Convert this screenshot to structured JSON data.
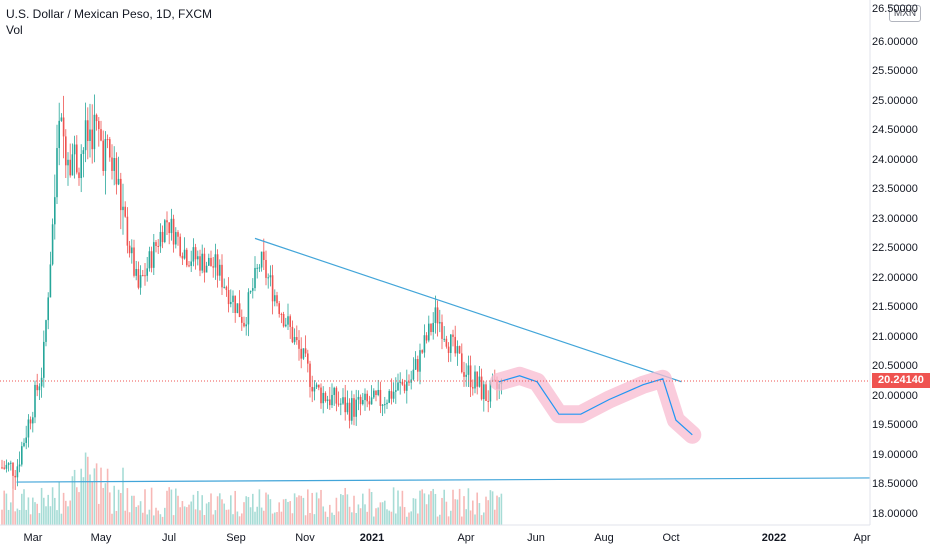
{
  "header": {
    "symbol_title": "U.S. Dollar / Mexican Peso, 1D, FXCM",
    "volume_label": "Vol",
    "currency": "MXN"
  },
  "price_axis": {
    "labels": [
      "26.00000",
      "25.50000",
      "25.00000",
      "24.50000",
      "24.00000",
      "23.50000",
      "23.00000",
      "22.50000",
      "22.00000",
      "21.50000",
      "21.00000",
      "20.50000",
      "20.00000",
      "19.50000",
      "19.00000",
      "18.50000",
      "18.00000"
    ],
    "top_partial": "26.50000",
    "last_price": "20.24140"
  },
  "time_axis": {
    "labels": [
      "Mar",
      "May",
      "Jul",
      "Sep",
      "Nov",
      "2021",
      "Apr",
      "Jun",
      "Aug",
      "Oct",
      "2022",
      "Apr"
    ],
    "bold": [
      "2021",
      "2022"
    ]
  },
  "colors": {
    "up": "#26a69a",
    "down": "#ef5350",
    "trendline": "#42a5d9",
    "projection": "#2196f3",
    "projection_band": "#f8bbd0"
  },
  "chart_data": {
    "type": "candlestick",
    "symbol": "USDMXN",
    "interval": "1D",
    "ylim": [
      17.8,
      26.7
    ],
    "approx_close_path": [
      {
        "date": "2020-02",
        "close": 18.8
      },
      {
        "date": "2020-03-10",
        "close": 20.5
      },
      {
        "date": "2020-03-25",
        "close": 24.5
      },
      {
        "date": "2020-04-10",
        "close": 24.0
      },
      {
        "date": "2020-04-25",
        "close": 24.6
      },
      {
        "date": "2020-05-15",
        "close": 23.8
      },
      {
        "date": "2020-06-05",
        "close": 21.8
      },
      {
        "date": "2020-06-20",
        "close": 22.5
      },
      {
        "date": "2020-07-01",
        "close": 23.0
      },
      {
        "date": "2020-07-20",
        "close": 22.4
      },
      {
        "date": "2020-08-15",
        "close": 22.2
      },
      {
        "date": "2020-09-10",
        "close": 21.3
      },
      {
        "date": "2020-09-25",
        "close": 22.3
      },
      {
        "date": "2020-10-25",
        "close": 21.0
      },
      {
        "date": "2020-11-15",
        "close": 20.1
      },
      {
        "date": "2020-12-15",
        "close": 19.8
      },
      {
        "date": "2021-01-10",
        "close": 19.9
      },
      {
        "date": "2021-02-10",
        "close": 20.3
      },
      {
        "date": "2021-03-05",
        "close": 21.4
      },
      {
        "date": "2021-03-25",
        "close": 20.6
      },
      {
        "date": "2021-04-20",
        "close": 20.0
      },
      {
        "date": "2021-05-05",
        "close": 20.2
      }
    ],
    "last_price": 20.2414,
    "trendlines": [
      {
        "from": {
          "date": "2020-09-20",
          "price": 22.68
        },
        "to": {
          "date": "2021-10-15",
          "price": 20.25
        }
      },
      {
        "from": {
          "date": "2020-02-15",
          "price": 18.55
        },
        "to": {
          "date": "2022-04-30",
          "price": 18.62
        }
      }
    ],
    "projection_path": [
      {
        "date": "2021-05-01",
        "price": 20.25
      },
      {
        "date": "2021-05-20",
        "price": 20.35
      },
      {
        "date": "2021-06-05",
        "price": 20.25
      },
      {
        "date": "2021-06-25",
        "price": 19.7
      },
      {
        "date": "2021-07-15",
        "price": 19.7
      },
      {
        "date": "2021-08-10",
        "price": 19.95
      },
      {
        "date": "2021-09-10",
        "price": 20.2
      },
      {
        "date": "2021-09-28",
        "price": 20.3
      },
      {
        "date": "2021-10-10",
        "price": 19.6
      },
      {
        "date": "2021-10-25",
        "price": 19.35
      }
    ]
  }
}
